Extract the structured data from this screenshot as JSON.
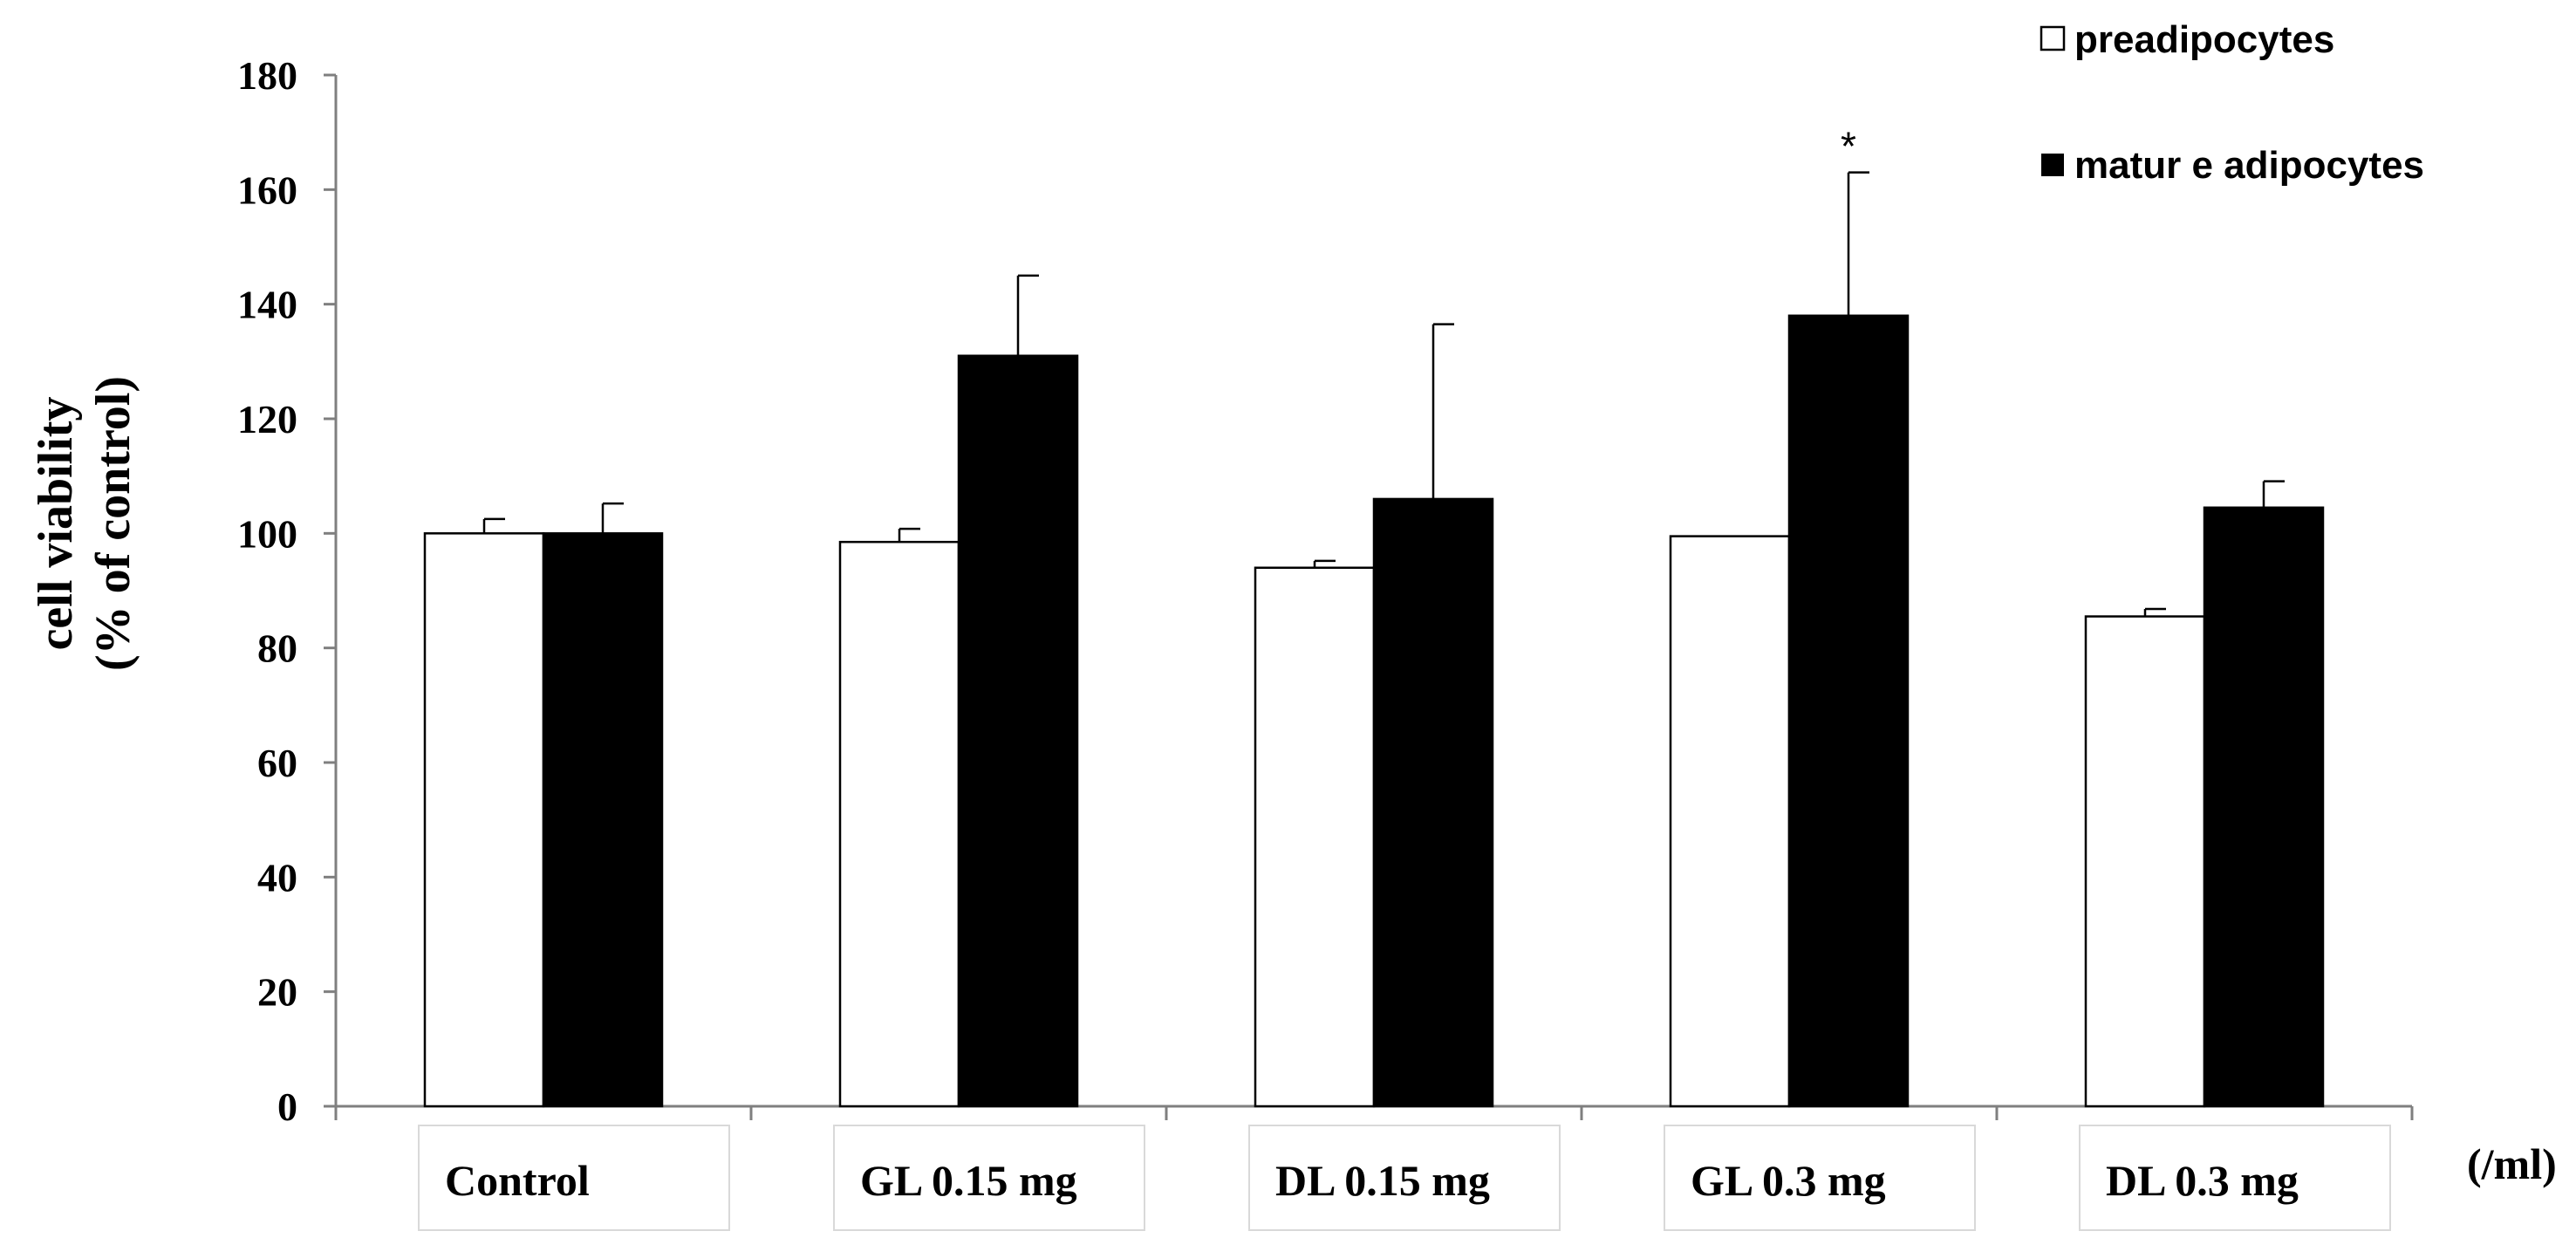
{
  "chart_data": {
    "type": "bar",
    "title": "",
    "xlabel": "",
    "ylabel_lines": [
      "cell viability",
      "(% of control)"
    ],
    "x_unit_label": "(/ml)",
    "categories": [
      "Control",
      "GL 0.15 mg",
      "DL 0.15 mg",
      "GL 0.3 mg",
      "DL 0.3 mg"
    ],
    "ylim": [
      0,
      180
    ],
    "yticks": [
      0,
      20,
      40,
      60,
      80,
      100,
      120,
      140,
      160,
      180
    ],
    "grid": false,
    "legend_position": "top-right",
    "series": [
      {
        "name": "preadipocytes",
        "fill": "#ffffff",
        "values": [
          100,
          98.5,
          94,
          99.5,
          85.5
        ],
        "errors": [
          2.5,
          2.3,
          1.2,
          0,
          1.3
        ]
      },
      {
        "name": "mature adipocytes",
        "legend_text": "matur e adipocytes",
        "fill": "#000000",
        "values": [
          100,
          131,
          106,
          138,
          104.5
        ],
        "errors": [
          5.2,
          14,
          30.5,
          25,
          4.6
        ]
      }
    ],
    "annotations": [
      {
        "text": "*",
        "category_index": 3,
        "series_index": 1
      }
    ]
  }
}
